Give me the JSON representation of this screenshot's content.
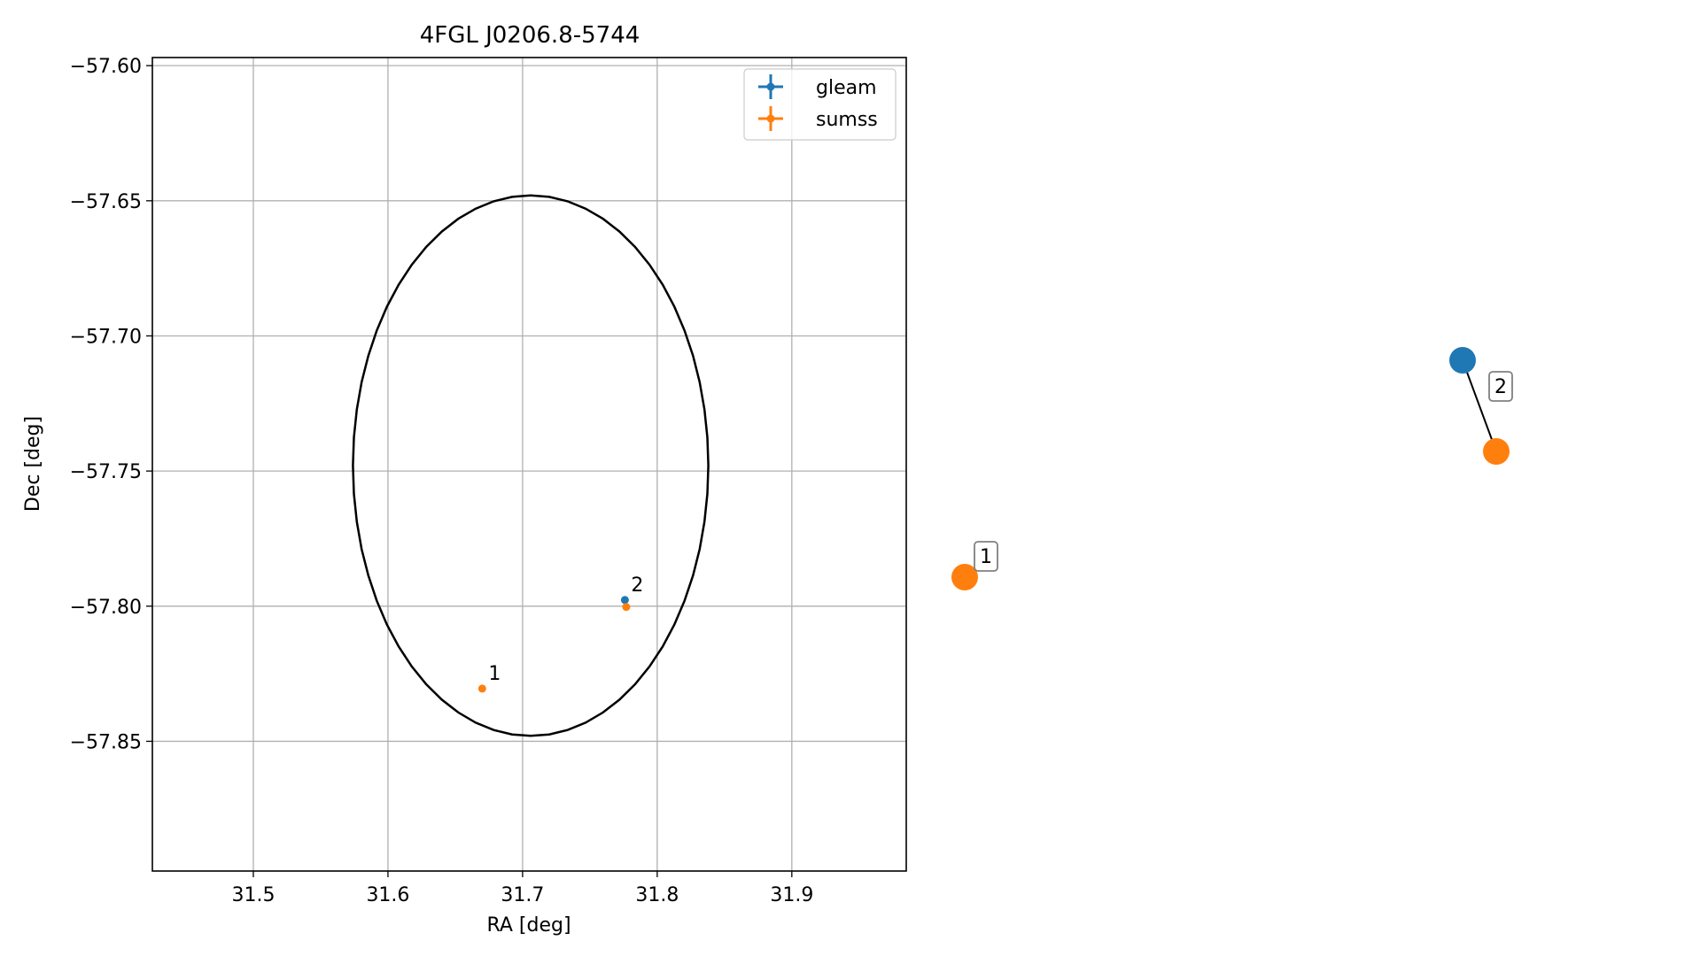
{
  "chart_data": [
    {
      "type": "scatter",
      "title": "4FGL J0206.8-5744",
      "xlabel": "RA [deg]",
      "ylabel": "Dec [deg]",
      "xlim": [
        31.425,
        31.985
      ],
      "ylim": [
        -57.898,
        -57.597
      ],
      "xticks": [
        31.5,
        31.6,
        31.7,
        31.8,
        31.9
      ],
      "xtick_labels": [
        "31.5",
        "31.6",
        "31.7",
        "31.8",
        "31.9"
      ],
      "yticks": [
        -57.6,
        -57.65,
        -57.7,
        -57.75,
        -57.8,
        -57.85
      ],
      "ytick_labels": [
        "−57.60",
        "−57.65",
        "−57.70",
        "−57.75",
        "−57.80",
        "−57.85"
      ],
      "grid": true,
      "legend": {
        "placement": "upper right",
        "entries": [
          {
            "name": "gleam",
            "color": "#1f77b4"
          },
          {
            "name": "sumss",
            "color": "#ff7f0e"
          }
        ]
      },
      "ellipse": {
        "center": [
          31.706,
          -57.748
        ],
        "ra_half_width": 0.132,
        "dec_half_height": 0.1,
        "color": "#000000"
      },
      "series": [
        {
          "name": "gleam",
          "color": "#1f77b4",
          "points": [
            {
              "x": 31.776,
              "y": -57.7977
            }
          ]
        },
        {
          "name": "sumss",
          "color": "#ff7f0e",
          "points": [
            {
              "x": 31.67,
              "y": -57.8305
            },
            {
              "x": 31.777,
              "y": -57.8003
            }
          ]
        }
      ],
      "annotations": [
        {
          "text": "1",
          "x": 31.67,
          "y": -57.8305
        },
        {
          "text": "2",
          "x": 31.776,
          "y": -57.7977
        }
      ]
    },
    {
      "type": "diagram",
      "nodes": [
        {
          "id": "gleam-2",
          "series": "gleam",
          "color": "#1f77b4"
        },
        {
          "id": "sumss-2",
          "series": "sumss",
          "color": "#ff7f0e"
        },
        {
          "id": "sumss-1",
          "series": "sumss",
          "color": "#ff7f0e"
        }
      ],
      "edges": [
        {
          "from": "gleam-2",
          "to": "sumss-2",
          "label": "2"
        }
      ],
      "labels": [
        {
          "text": "1",
          "node": "sumss-1"
        }
      ]
    }
  ]
}
